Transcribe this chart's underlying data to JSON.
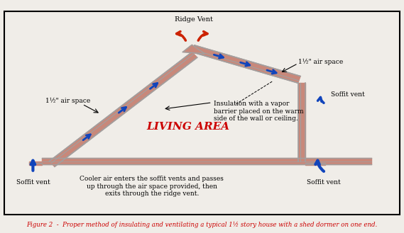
{
  "fig_width": 5.69,
  "fig_height": 3.29,
  "dpi": 100,
  "bg_color": "#f0ede8",
  "border_color": "#000000",
  "insulation_color": "#d4a0a0",
  "insulation_fill": "#c8887a",
  "frame_color": "#b0b0b0",
  "title": "Figure 2  -  Proper method of insulating and ventilating a typical 1½ story house with a shed dormer on one end.",
  "title_color": "#cc0000",
  "living_area_text": "LIVING AREA",
  "living_area_color": "#cc0000",
  "labels": {
    "ridge_vent": "Ridge Vent",
    "air_space_left": "1½\" air space",
    "air_space_right": "1½\" air space",
    "soffit_left": "Soffit vent",
    "soffit_right": "Soffit vent",
    "soffit_mid": "Soffit vent",
    "insulation_note": "Insulation with a vapor\nbarrier placed on the warm\nside of the wall or ceiling.",
    "cooler_air_note": "Cooler air enters the soffit vents and passes\nup through the air space provided, then\nexits through the ridge vent."
  }
}
